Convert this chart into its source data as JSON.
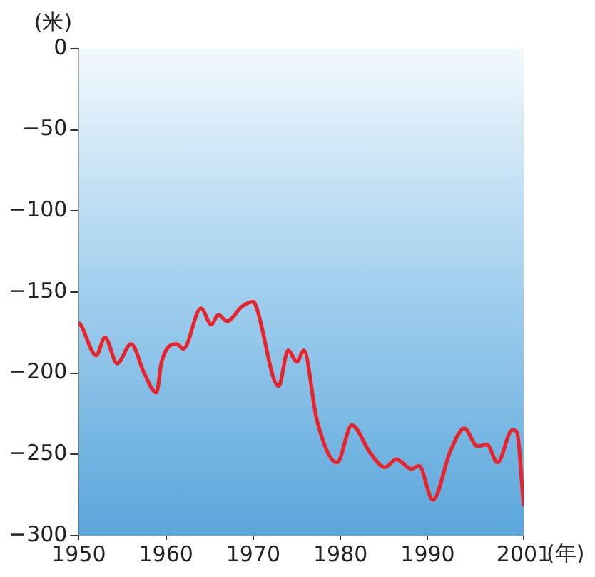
{
  "chart_data": {
    "type": "line",
    "xlabel": "(年)",
    "ylabel": "(米)",
    "x": [
      1950,
      1950.2,
      1952,
      1953,
      1954.4,
      1956,
      1957.5,
      1958.9,
      1959.5,
      1961.2,
      1962,
      1964,
      1965.2,
      1966,
      1967,
      1968.7,
      1970,
      1970.4,
      1972.9,
      1974,
      1975,
      1975.8,
      1977.3,
      1979.6,
      1981.3,
      1983.4,
      1985.1,
      1986.4,
      1988.1,
      1989,
      1990.6,
      1992.6,
      1994.2,
      1995.7,
      1996.8,
      1998,
      1999.7,
      2000.2,
      2001
    ],
    "series": [
      {
        "color": "#e8232b",
        "values": [
          -169,
          -170,
          -189,
          -178,
          -194,
          -182,
          -200,
          -212,
          -193,
          -182,
          -185,
          -160,
          -170,
          -164,
          -168,
          -159,
          -156,
          -160,
          -208,
          -186,
          -193,
          -186,
          -229,
          -255,
          -232,
          -249,
          -258,
          -253,
          -259,
          -257,
          -278,
          -248,
          -234,
          -245,
          -244,
          -255,
          -235,
          -236,
          -281
        ]
      }
    ],
    "xlim": [
      1950,
      2001
    ],
    "xticks": [
      1950,
      1960,
      1970,
      1980,
      1990,
      2001
    ],
    "ylim": [
      -300,
      0
    ],
    "yticks": [
      0,
      -50,
      -100,
      -150,
      -200,
      -250,
      -300
    ],
    "grid": false,
    "legend": false,
    "marker": "none",
    "line_style": "solid"
  }
}
